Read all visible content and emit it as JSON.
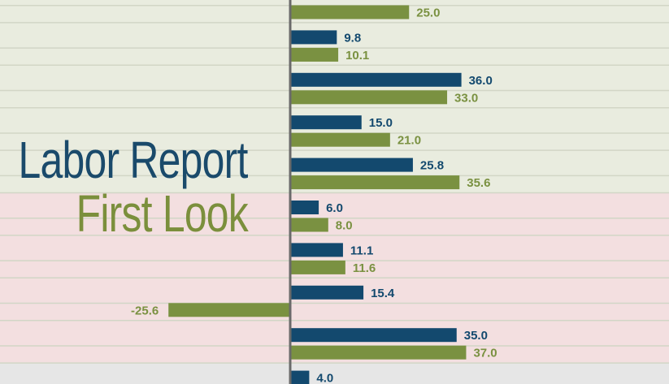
{
  "header": {
    "title": "Labor Report",
    "subtitle": "First Look"
  },
  "colors": {
    "series_a": "#13496e",
    "series_b": "#7a9141",
    "band_green": "#e9ecdf",
    "band_pink": "#f3dfe0",
    "band_gray": "#e6e6e6",
    "gridline": "#d2d6c6",
    "axis": "#6a6a6a"
  },
  "chart_data": {
    "type": "bar",
    "orientation": "horizontal",
    "grid": true,
    "legend": "none",
    "xlim": [
      -35,
      45
    ],
    "groups": [
      {
        "band": "green",
        "a": null,
        "a_label": "",
        "b": 25.0,
        "b_label": "25.0"
      },
      {
        "band": "green",
        "a": 9.8,
        "a_label": "9.8",
        "b": 10.1,
        "b_label": "10.1"
      },
      {
        "band": "green",
        "a": 36.0,
        "a_label": "36.0",
        "b": 33.0,
        "b_label": "33.0"
      },
      {
        "band": "green",
        "a": 15.0,
        "a_label": "15.0",
        "b": 21.0,
        "b_label": "21.0"
      },
      {
        "band": "green",
        "a": 25.8,
        "a_label": "25.8",
        "b": 35.6,
        "b_label": "35.6"
      },
      {
        "band": "pink",
        "a": 6.0,
        "a_label": "6.0",
        "b": 8.0,
        "b_label": "8.0"
      },
      {
        "band": "pink",
        "a": 11.1,
        "a_label": "11.1",
        "b": 11.6,
        "b_label": "11.6"
      },
      {
        "band": "pink",
        "a": 15.4,
        "a_label": "15.4",
        "b": -25.6,
        "b_label": "-25.6"
      },
      {
        "band": "pink",
        "a": 35.0,
        "a_label": "35.0",
        "b": 37.0,
        "b_label": "37.0"
      },
      {
        "band": "gray",
        "a": 4.0,
        "a_label": "4.0",
        "b": null,
        "b_label": ""
      }
    ]
  }
}
